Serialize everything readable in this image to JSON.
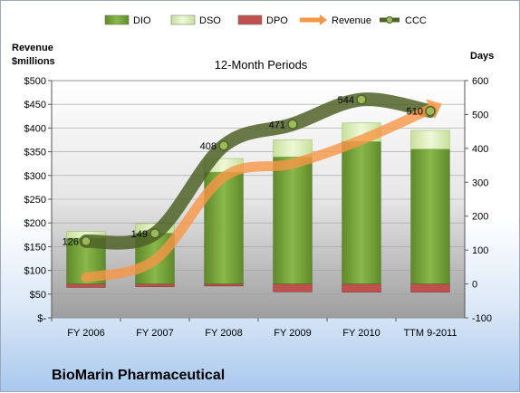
{
  "company": "BioMarin Pharmaceutical",
  "chart_data": {
    "type": "bar",
    "title": "12-Month Periods",
    "left_axis_label_1": "Revenue",
    "left_axis_label_2": "$millions",
    "right_axis_label": "Days",
    "categories": [
      "FY 2006",
      "FY 2007",
      "FY 2008",
      "FY 2009",
      "FY 2010",
      "TTM 9-2011"
    ],
    "left_ticks": [
      "$-",
      "$50",
      "$100",
      "$150",
      "$200",
      "$250",
      "$300",
      "$350",
      "$400",
      "$450",
      "$500"
    ],
    "right_ticks": [
      "-100",
      "0",
      "100",
      "200",
      "300",
      "400",
      "500",
      "600"
    ],
    "ylim_left": [
      0,
      500
    ],
    "ylim_right": [
      -100,
      600
    ],
    "legend": [
      "DIO",
      "DSO",
      "DPO",
      "Revenue",
      "CCC"
    ],
    "legend_position": "top",
    "colors": {
      "DIO": "#76a23a",
      "DSO": "#d8ecb0",
      "DPO": "#c0504d",
      "Revenue": "#f79646",
      "CCC": "#4f6228"
    },
    "series": [
      {
        "name": "DIO",
        "axis": "right",
        "values": [
          135,
          150,
          330,
          375,
          420,
          398
        ]
      },
      {
        "name": "DSO",
        "axis": "right",
        "values": [
          20,
          28,
          40,
          50,
          55,
          55
        ]
      },
      {
        "name": "DPO",
        "axis": "right",
        "values": [
          -10,
          -8,
          -6,
          -23,
          -24,
          -24
        ]
      },
      {
        "name": "Revenue",
        "axis": "left",
        "values": [
          85,
          122,
          297,
          325,
          375,
          440
        ]
      },
      {
        "name": "CCC",
        "axis": "right",
        "values": [
          126,
          149,
          408,
          471,
          544,
          510
        ]
      }
    ],
    "ccc_labels": [
      "126",
      "149",
      "408",
      "471",
      "544",
      "510"
    ]
  }
}
